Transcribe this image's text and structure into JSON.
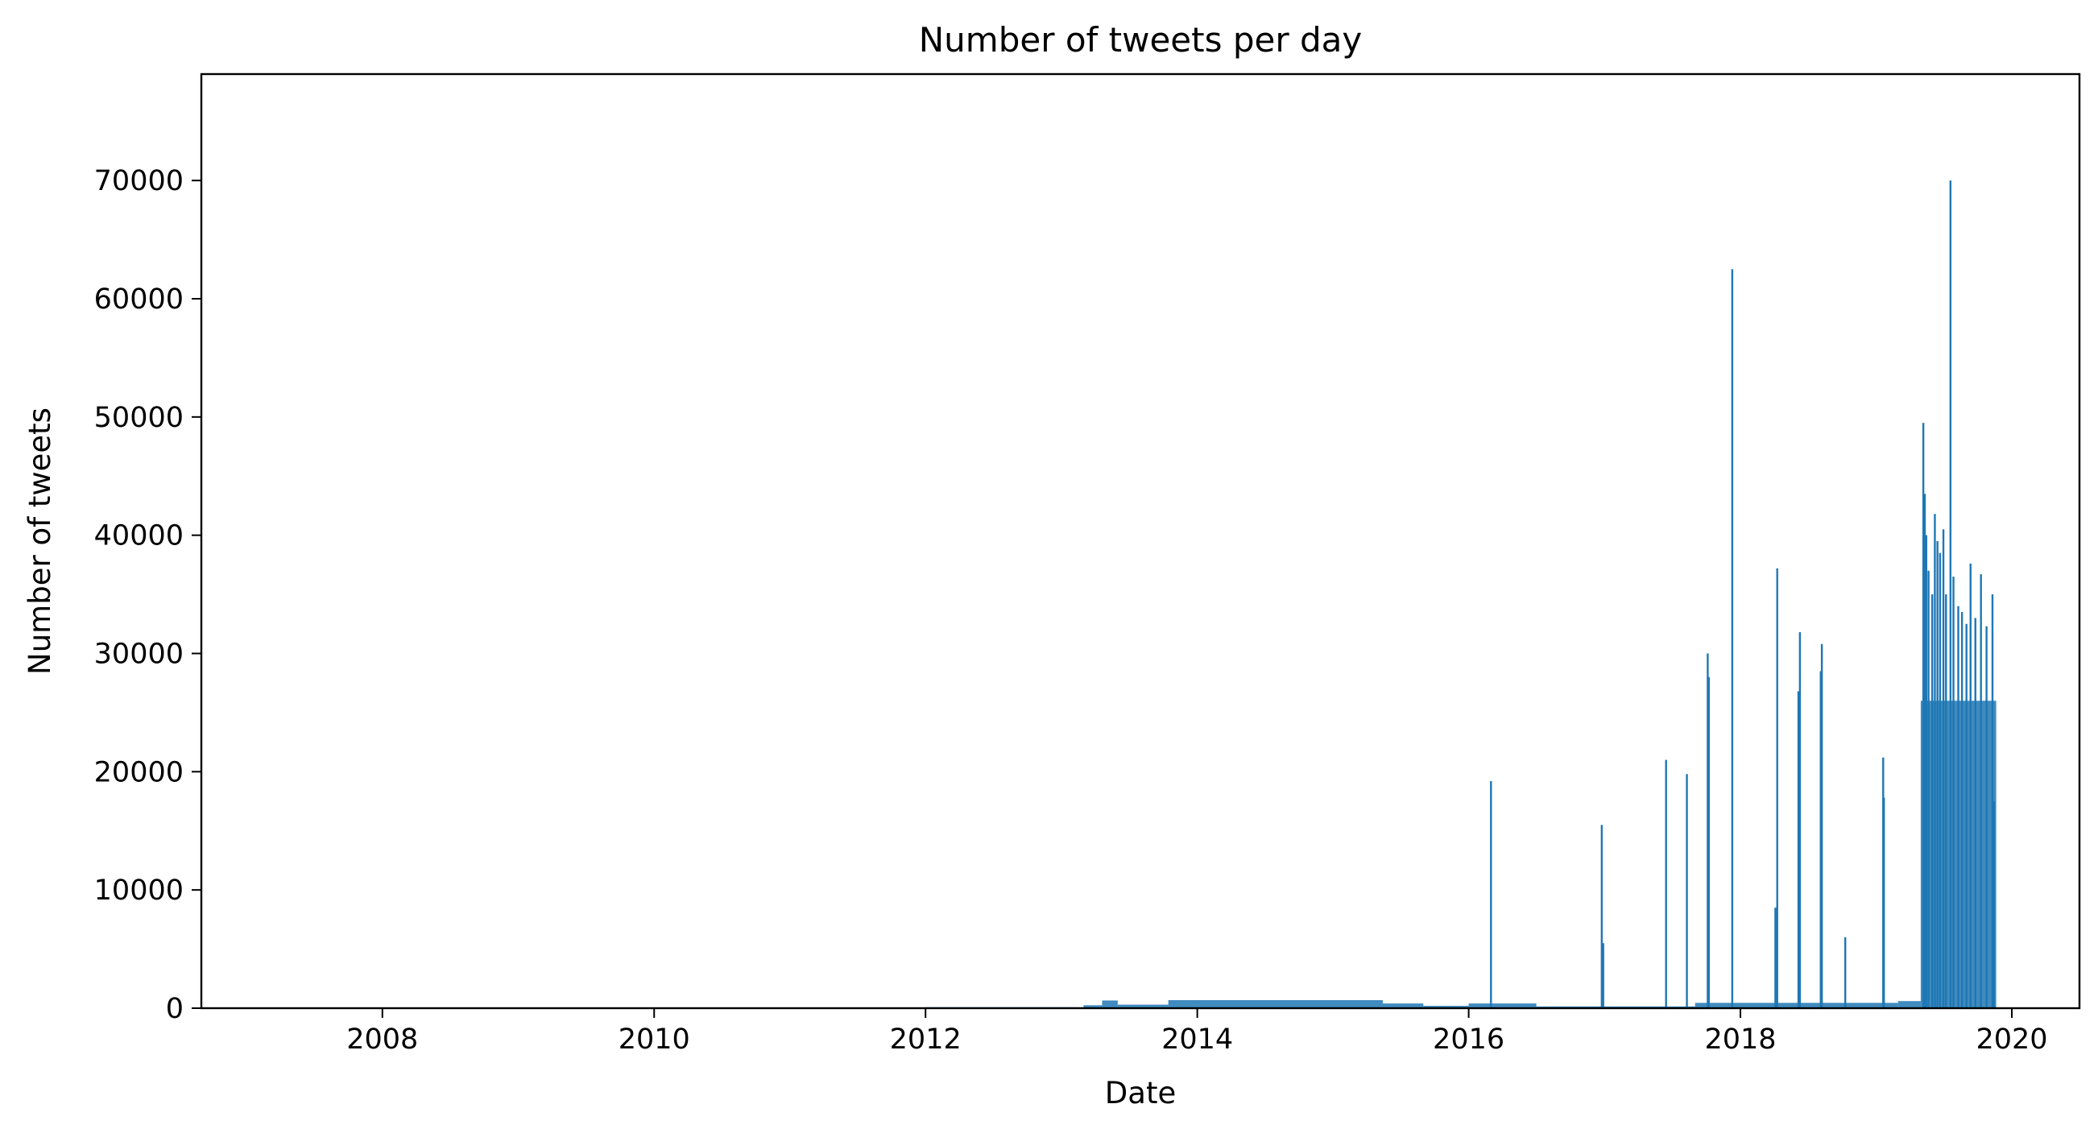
{
  "chart_data": {
    "type": "bar",
    "title": "Number of tweets per day",
    "xlabel": "Date",
    "ylabel": "Number of tweets",
    "xlim": [
      "2006-09-01",
      "2020-07-01"
    ],
    "ylim": [
      0,
      79000
    ],
    "x_ticks": [
      "2008",
      "2010",
      "2012",
      "2014",
      "2016",
      "2018",
      "2020"
    ],
    "y_ticks": [
      0,
      10000,
      20000,
      30000,
      40000,
      50000,
      60000,
      70000
    ],
    "grid": false,
    "legend": "none",
    "bar_color": "#1f77b4",
    "spikes": [
      {
        "date": "2016-03-01",
        "value": 19200
      },
      {
        "date": "2016-12-24",
        "value": 15500
      },
      {
        "date": "2016-12-28",
        "value": 5500
      },
      {
        "date": "2017-06-15",
        "value": 21000
      },
      {
        "date": "2017-08-10",
        "value": 19800
      },
      {
        "date": "2017-10-05",
        "value": 30000
      },
      {
        "date": "2017-10-08",
        "value": 28000
      },
      {
        "date": "2017-12-10",
        "value": 62500
      },
      {
        "date": "2018-04-10",
        "value": 37200
      },
      {
        "date": "2018-04-05",
        "value": 8500
      },
      {
        "date": "2018-06-10",
        "value": 31800
      },
      {
        "date": "2018-06-06",
        "value": 26800
      },
      {
        "date": "2018-08-08",
        "value": 30800
      },
      {
        "date": "2018-08-05",
        "value": 28500
      },
      {
        "date": "2018-10-10",
        "value": 6000
      },
      {
        "date": "2019-01-20",
        "value": 21200
      },
      {
        "date": "2019-01-22",
        "value": 17800
      },
      {
        "date": "2019-05-08",
        "value": 49500
      },
      {
        "date": "2019-05-12",
        "value": 43500
      },
      {
        "date": "2019-05-16",
        "value": 40000
      },
      {
        "date": "2019-05-22",
        "value": 37000
      },
      {
        "date": "2019-06-01",
        "value": 35000
      },
      {
        "date": "2019-06-08",
        "value": 41800
      },
      {
        "date": "2019-06-15",
        "value": 39500
      },
      {
        "date": "2019-06-22",
        "value": 38500
      },
      {
        "date": "2019-07-01",
        "value": 40500
      },
      {
        "date": "2019-07-08",
        "value": 35000
      },
      {
        "date": "2019-07-20",
        "value": 70000
      },
      {
        "date": "2019-07-28",
        "value": 36500
      },
      {
        "date": "2019-08-10",
        "value": 34000
      },
      {
        "date": "2019-08-20",
        "value": 33500
      },
      {
        "date": "2019-09-01",
        "value": 32500
      },
      {
        "date": "2019-09-12",
        "value": 37600
      },
      {
        "date": "2019-09-25",
        "value": 33000
      },
      {
        "date": "2019-10-10",
        "value": 36700
      },
      {
        "date": "2019-10-25",
        "value": 32300
      },
      {
        "date": "2019-11-10",
        "value": 35000
      },
      {
        "date": "2019-11-14",
        "value": 17500
      }
    ],
    "background_segments": [
      {
        "from": "2012-01-01",
        "to": "2013-03-01",
        "value": 80
      },
      {
        "from": "2013-03-01",
        "to": "2013-04-20",
        "value": 250
      },
      {
        "from": "2013-04-20",
        "to": "2013-06-01",
        "value": 650
      },
      {
        "from": "2013-06-01",
        "to": "2013-10-15",
        "value": 300
      },
      {
        "from": "2013-10-15",
        "to": "2015-05-15",
        "value": 680
      },
      {
        "from": "2015-05-15",
        "to": "2015-09-01",
        "value": 400
      },
      {
        "from": "2015-09-01",
        "to": "2016-01-01",
        "value": 200
      },
      {
        "from": "2016-01-01",
        "to": "2016-07-01",
        "value": 400
      },
      {
        "from": "2016-07-01",
        "to": "2017-09-01",
        "value": 150
      },
      {
        "from": "2017-09-01",
        "to": "2019-03-01",
        "value": 450
      },
      {
        "from": "2019-03-01",
        "to": "2019-05-01",
        "value": 600
      },
      {
        "from": "2019-05-01",
        "to": "2019-11-20",
        "value": 26000
      }
    ]
  }
}
